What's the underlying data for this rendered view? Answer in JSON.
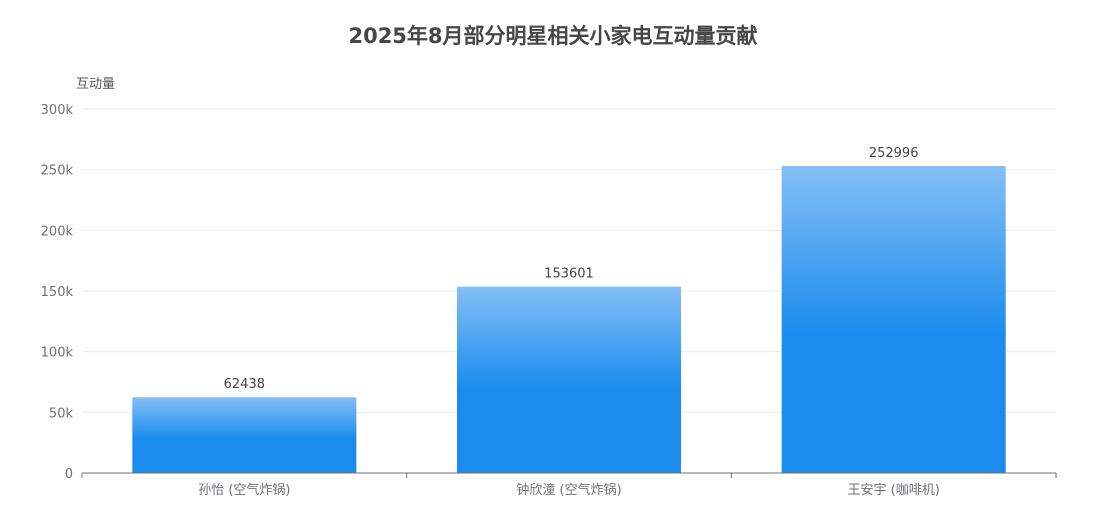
{
  "chart_data": {
    "type": "bar",
    "title": "2025年8月部分明星相关小家电互动量贡献",
    "xlabel": "",
    "ylabel": "互动量",
    "categories": [
      "孙怡 (空气炸锅)",
      "钟欣潼 (空气炸锅)",
      "王安宇 (咖啡机)"
    ],
    "values": [
      62438,
      153601,
      252996
    ],
    "ylim": [
      0,
      300000
    ],
    "yticks": [
      "0",
      "50k",
      "100k",
      "150k",
      "200k",
      "250k",
      "300k"
    ],
    "grid": true,
    "legend": "none",
    "colors": {
      "bar_top": "#84bff5",
      "bar_bottom": "#1a8cee",
      "grid": "#e8ebf0",
      "axis": "#6e7079"
    }
  }
}
